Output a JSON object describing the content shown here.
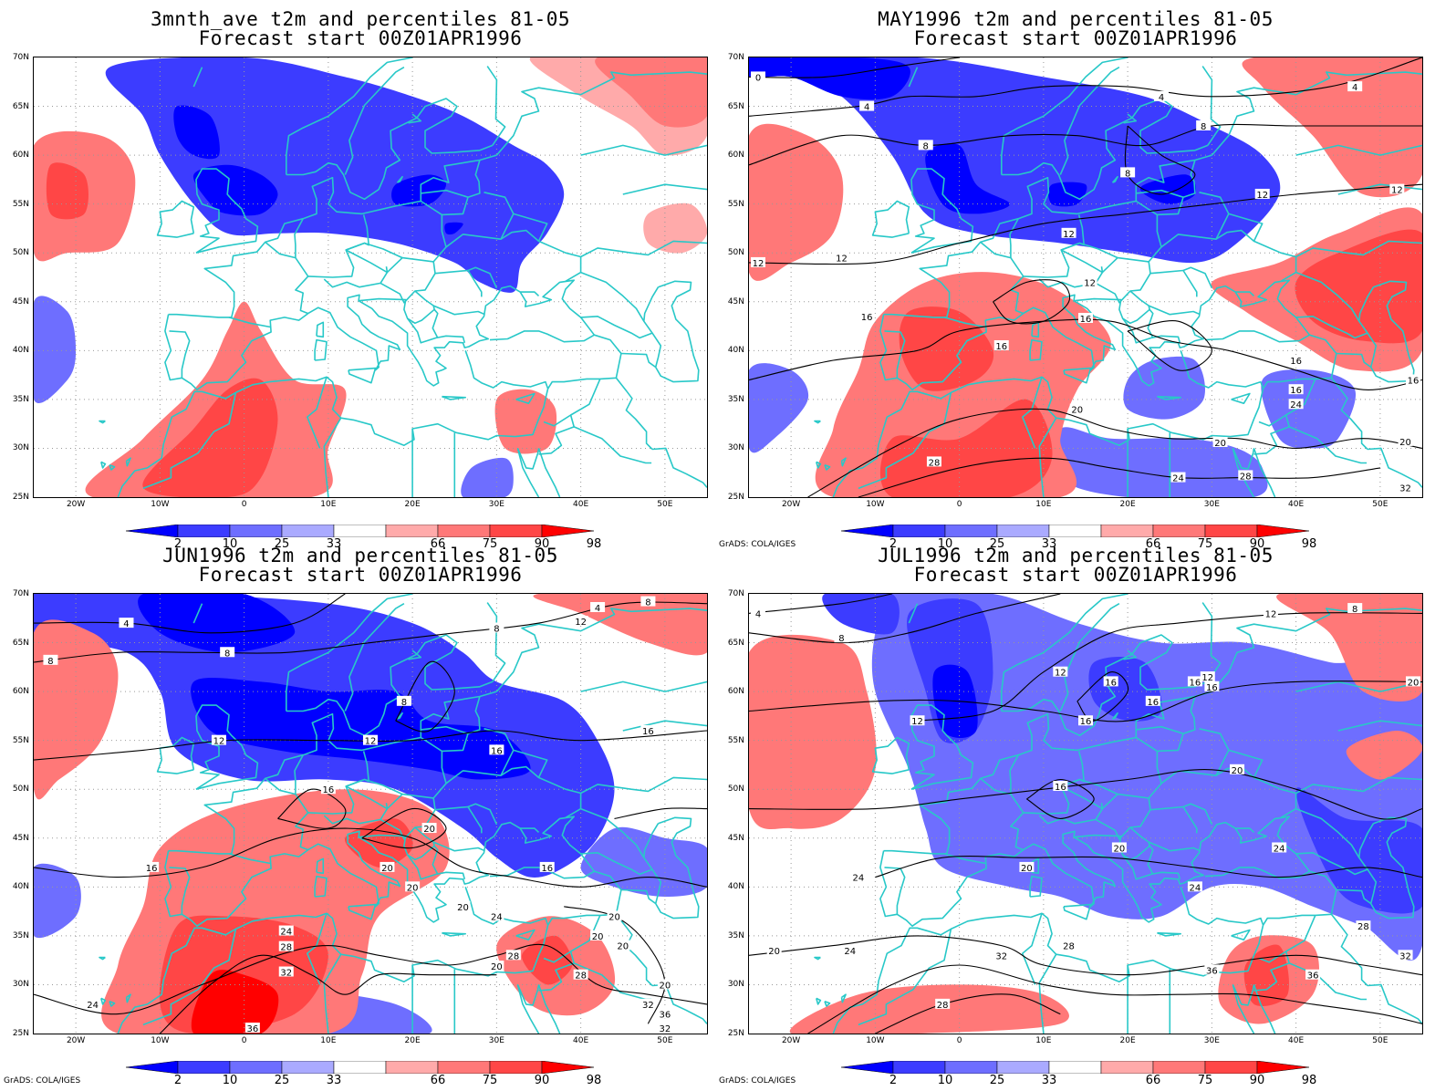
{
  "panels": [
    {
      "title_line1": "3mnth_ave t2m and percentiles 81-05",
      "title_line2": "Forecast start 00Z01APR1996",
      "credit": "",
      "contour_labels": []
    },
    {
      "title_line1": "MAY1996 t2m and percentiles 81-05",
      "title_line2": "Forecast start 00Z01APR1996",
      "credit": "GrADS: COLA/IGES",
      "contour_labels": [
        "0",
        "4",
        "4",
        "4",
        "8",
        "8",
        "8",
        "12",
        "12",
        "12",
        "12",
        "12",
        "16",
        "16",
        "16",
        "16",
        "16",
        "20",
        "20",
        "20",
        "24",
        "24",
        "28",
        "28",
        "32",
        "12",
        "16"
      ]
    },
    {
      "title_line1": "JUN1996 t2m and percentiles 81-05",
      "title_line2": "Forecast start 00Z01APR1996",
      "credit": "GrADS: COLA/IGES",
      "contour_labels": [
        "4",
        "4",
        "8",
        "8",
        "8",
        "8",
        "8",
        "12",
        "12",
        "12",
        "16",
        "16",
        "16",
        "16",
        "16",
        "20",
        "20",
        "20",
        "20",
        "20",
        "20",
        "20",
        "24",
        "24",
        "28",
        "32",
        "36",
        "28",
        "32",
        "36",
        "20",
        "20",
        "24",
        "28",
        "32"
      ]
    },
    {
      "title_line1": "JUL1996 t2m and percentiles 81-05",
      "title_line2": "Forecast start 00Z01APR1996",
      "credit": "GrADS: COLA/IGES",
      "contour_labels": [
        "4",
        "8",
        "8",
        "12",
        "12",
        "12",
        "12",
        "16",
        "16",
        "16",
        "16",
        "16",
        "16",
        "20",
        "20",
        "20",
        "20",
        "24",
        "24",
        "24",
        "24",
        "28",
        "28",
        "28",
        "32",
        "32",
        "36",
        "36",
        "20"
      ]
    }
  ],
  "axes": {
    "y_ticks": [
      "70N",
      "65N",
      "60N",
      "55N",
      "50N",
      "45N",
      "40N",
      "35N",
      "30N",
      "25N"
    ],
    "x_ticks": [
      "20W",
      "10W",
      "0",
      "10E",
      "20E",
      "30E",
      "40E",
      "50E"
    ],
    "lon_range": [
      -25,
      55
    ],
    "lat_range": [
      25,
      70
    ]
  },
  "colorbar": {
    "labels": [
      "2",
      "10",
      "25",
      "33",
      "66",
      "75",
      "90",
      "98"
    ],
    "colors": [
      "#0000ff",
      "#3c3cff",
      "#6e6eff",
      "#aaaaff",
      "#ffffff",
      "#ffaaaa",
      "#ff7878",
      "#ff4646",
      "#ff0000"
    ]
  },
  "colors": {
    "coastline": "#28c8c8",
    "contour": "#000000",
    "grid": "#999999"
  }
}
